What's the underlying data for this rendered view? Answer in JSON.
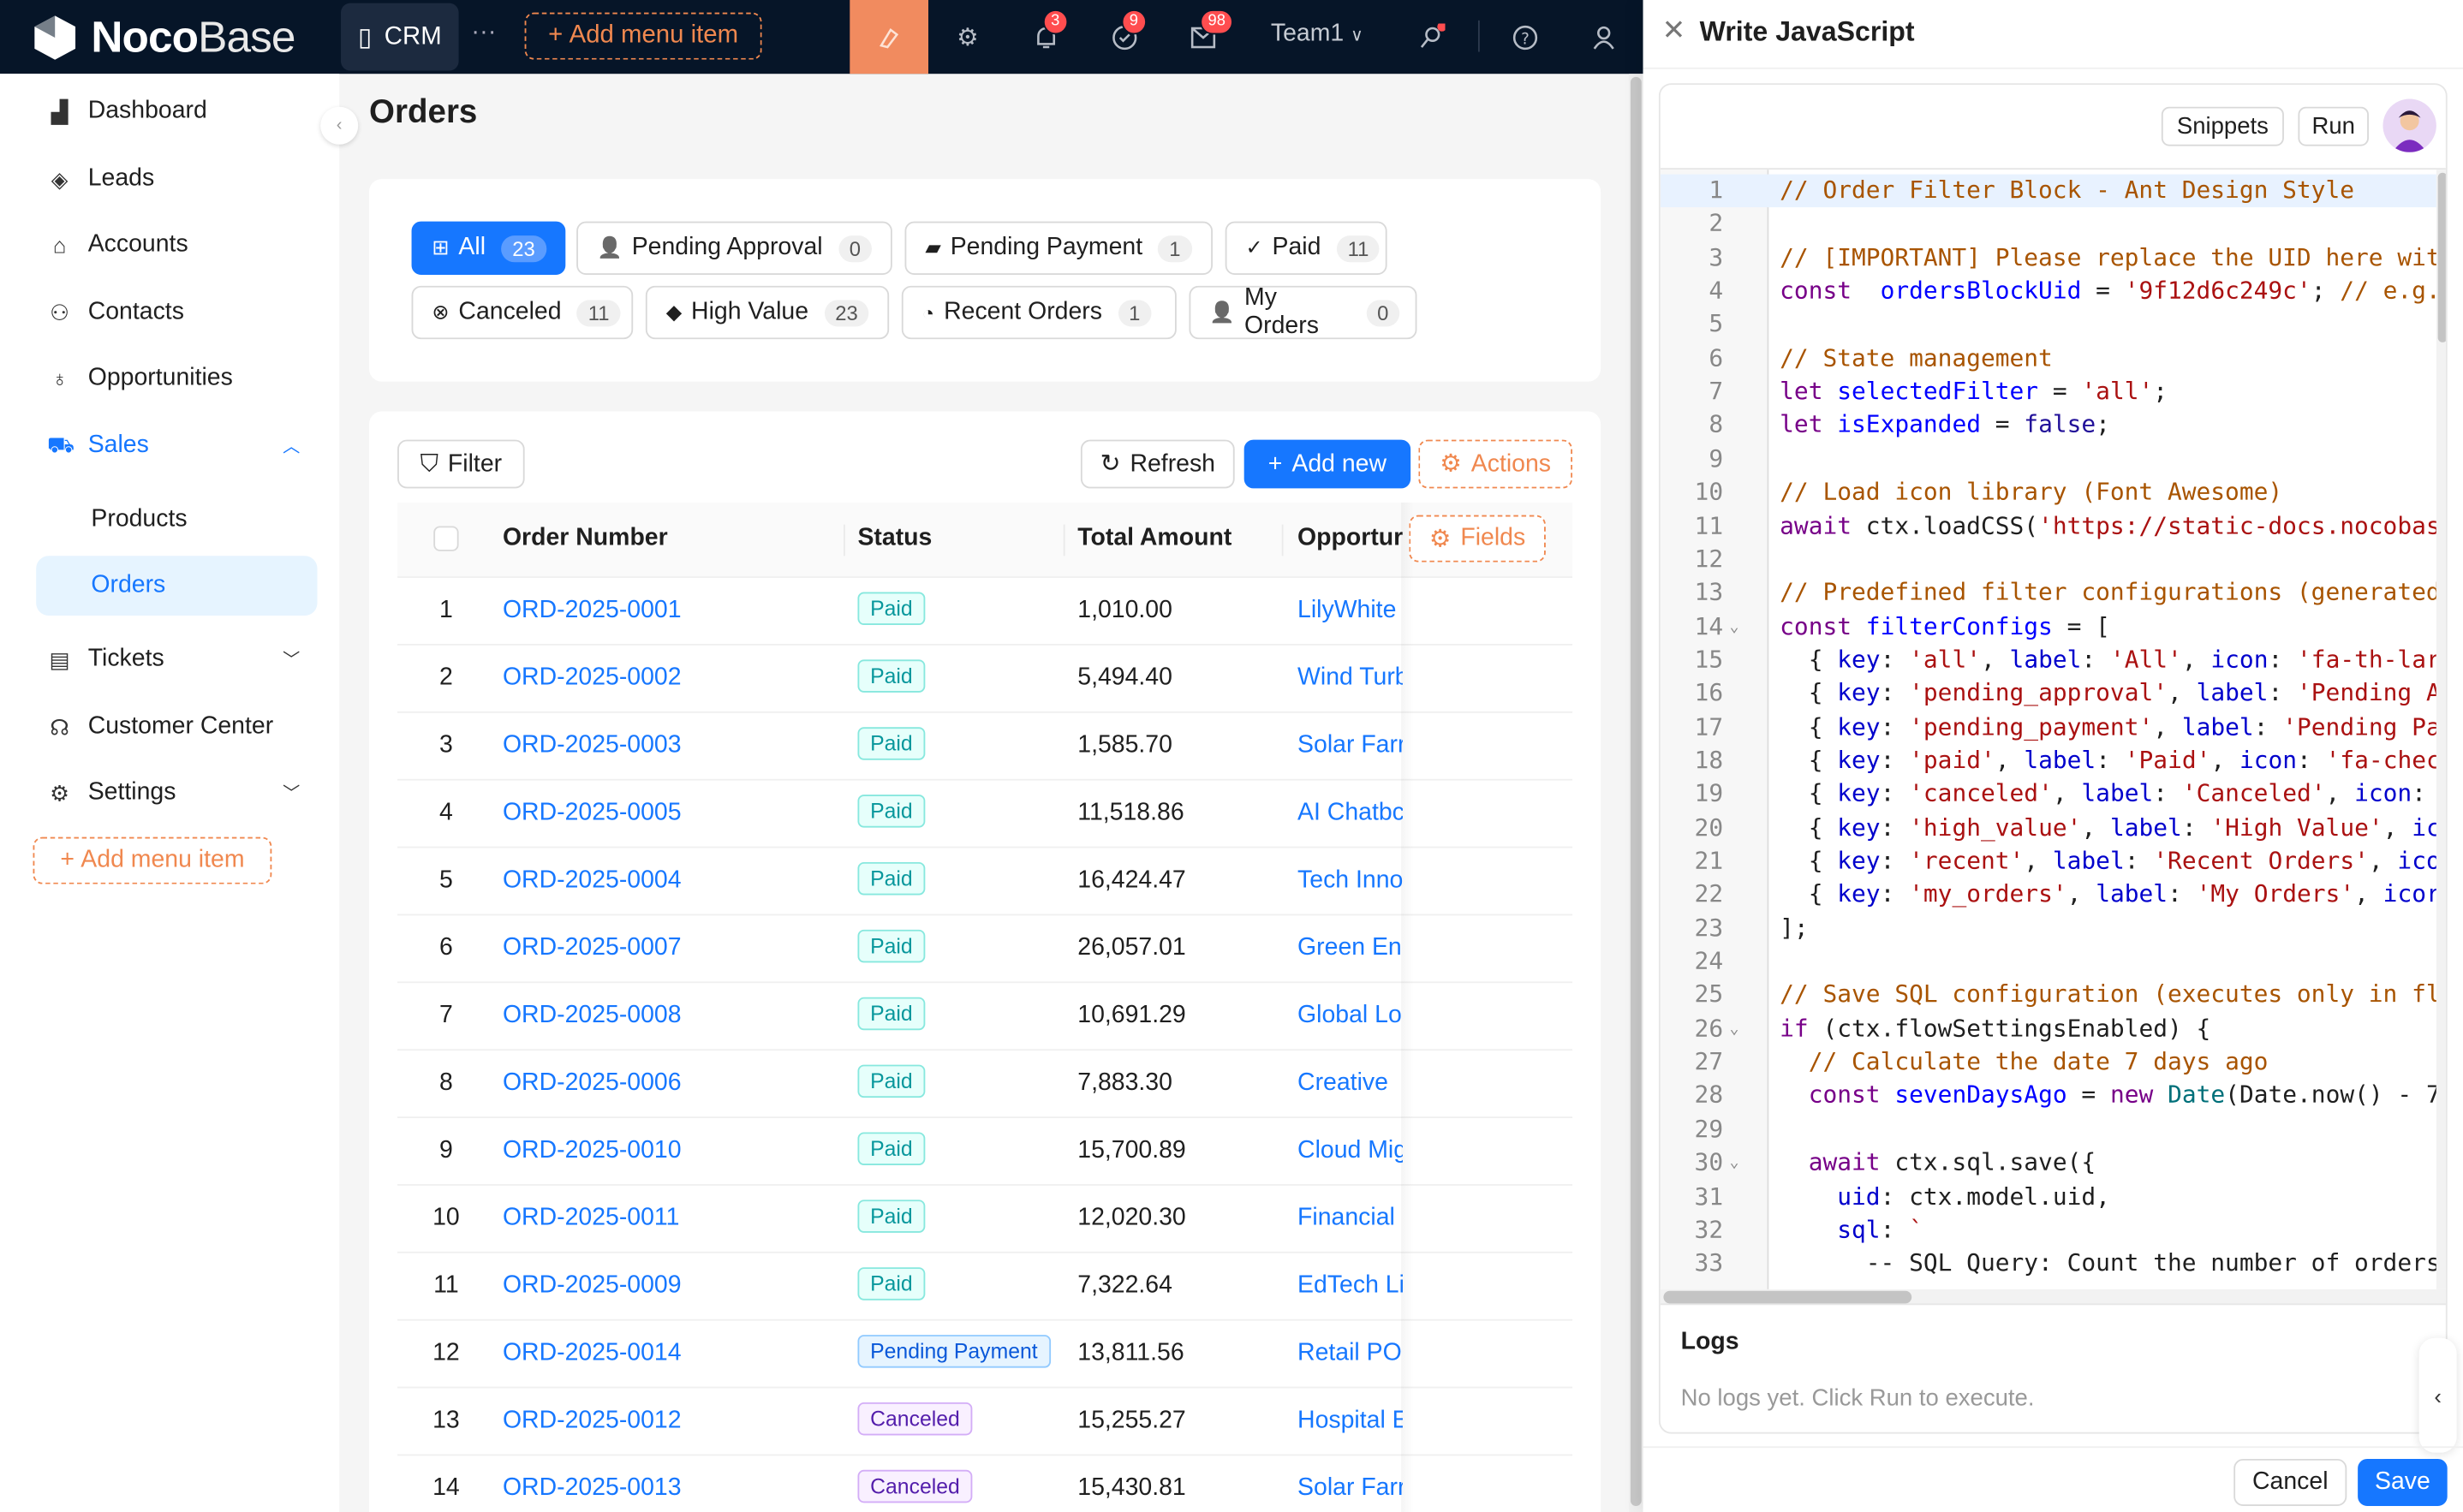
{
  "topbar": {
    "logo_bold": "Noco",
    "logo_light": "Base",
    "crm_tab": "CRM",
    "more": "···",
    "add_menu_item": "Add menu item",
    "notifications": {
      "bell": "3",
      "tasks": "9",
      "mail": "98"
    },
    "team": "Team1",
    "accent": "#f18b5f",
    "icons": [
      "ui-editor-icon",
      "gear-icon",
      "bell-icon",
      "check-circle-icon",
      "mail-icon",
      "key-search-icon",
      "help-icon",
      "user-icon"
    ]
  },
  "sidebar": {
    "items": [
      {
        "label": "Dashboard",
        "icon": "chart-icon"
      },
      {
        "label": "Leads",
        "icon": "target-icon"
      },
      {
        "label": "Accounts",
        "icon": "bank-icon"
      },
      {
        "label": "Contacts",
        "icon": "contacts-icon"
      },
      {
        "label": "Opportunities",
        "icon": "bulb-icon"
      },
      {
        "label": "Sales",
        "icon": "cart-icon"
      },
      {
        "label": "Products"
      },
      {
        "label": "Orders"
      },
      {
        "label": "Tickets",
        "icon": "ticket-icon"
      },
      {
        "label": "Customer Center",
        "icon": "headset-icon"
      },
      {
        "label": "Settings",
        "icon": "gear-icon"
      }
    ],
    "add_menu_item": "Add menu item",
    "selected": "Orders"
  },
  "page": {
    "title": "Orders"
  },
  "filters": [
    {
      "label": "All",
      "count": "23",
      "active": true
    },
    {
      "label": "Pending Approval",
      "count": "0"
    },
    {
      "label": "Pending Payment",
      "count": "1"
    },
    {
      "label": "Paid",
      "count": "11"
    },
    {
      "label": "Canceled",
      "count": "11"
    },
    {
      "label": "High Value",
      "count": "23"
    },
    {
      "label": "Recent Orders",
      "count": "1"
    },
    {
      "label": "My Orders",
      "count": "0"
    }
  ],
  "toolbar": {
    "filter": "Filter",
    "refresh": "Refresh",
    "add_new": "Add new",
    "actions": "Actions",
    "fields": "Fields"
  },
  "table": {
    "columns": [
      "Order Number",
      "Status",
      "Total Amount",
      "Opportur"
    ],
    "rows": [
      [
        "1",
        "ORD-2025-0001",
        "Paid",
        "1,010.00",
        "LilyWhite"
      ],
      [
        "2",
        "ORD-2025-0002",
        "Paid",
        "5,494.40",
        "Wind Turb"
      ],
      [
        "3",
        "ORD-2025-0003",
        "Paid",
        "1,585.70",
        "Solar Farr"
      ],
      [
        "4",
        "ORD-2025-0005",
        "Paid",
        "11,518.86",
        "AI Chatbc"
      ],
      [
        "5",
        "ORD-2025-0004",
        "Paid",
        "16,424.47",
        "Tech Inno"
      ],
      [
        "6",
        "ORD-2025-0007",
        "Paid",
        "26,057.01",
        "Green Ene"
      ],
      [
        "7",
        "ORD-2025-0008",
        "Paid",
        "10,691.29",
        "Global Lo"
      ],
      [
        "8",
        "ORD-2025-0006",
        "Paid",
        "7,883.30",
        "Creative"
      ],
      [
        "9",
        "ORD-2025-0010",
        "Paid",
        "15,700.89",
        "Cloud Mig"
      ],
      [
        "10",
        "ORD-2025-0011",
        "Paid",
        "12,020.30",
        "Financial"
      ],
      [
        "11",
        "ORD-2025-0009",
        "Paid",
        "7,322.64",
        "EdTech Li"
      ],
      [
        "12",
        "ORD-2025-0014",
        "Pending Payment",
        "13,811.56",
        "Retail POS"
      ],
      [
        "13",
        "ORD-2025-0012",
        "Canceled",
        "15,255.27",
        "Hospital E"
      ],
      [
        "14",
        "ORD-2025-0013",
        "Canceled",
        "15,430.81",
        "Solar Farr"
      ]
    ],
    "status_colors": {
      "Paid": {
        "bg": "#e6fffb",
        "border": "#87e8de",
        "text": "#08979c"
      },
      "Pending Payment": {
        "bg": "#e6f4ff",
        "border": "#91caff",
        "text": "#0958d9"
      },
      "Canceled": {
        "bg": "#f9f0ff",
        "border": "#d3adf7",
        "text": "#531dab"
      }
    }
  },
  "drawer": {
    "title": "Write JavaScript",
    "snippets": "Snippets",
    "run": "Run",
    "logs_title": "Logs",
    "logs_empty": "No logs yet. Click Run to execute.",
    "cancel": "Cancel",
    "save": "Save",
    "active_line": 1,
    "folds": [
      14,
      26,
      30
    ],
    "code": [
      [
        [
          "c",
          "// Order Filter Block - Ant Design Style"
        ]
      ],
      [],
      [
        [
          "c",
          "// [IMPORTANT] Please replace the UID here wit"
        ]
      ],
      [
        [
          "k",
          "const"
        ],
        [
          "",
          "  "
        ],
        [
          "d",
          "ordersBlockUid"
        ],
        [
          "",
          " = "
        ],
        [
          "s",
          "'9f12d6c249c'"
        ],
        [
          "",
          "; "
        ],
        [
          "c",
          "// e.g.,"
        ]
      ],
      [],
      [
        [
          "c",
          "// State management"
        ]
      ],
      [
        [
          "k",
          "let"
        ],
        [
          "",
          " "
        ],
        [
          "d",
          "selectedFilter"
        ],
        [
          "",
          " = "
        ],
        [
          "s",
          "'all'"
        ],
        [
          "",
          ";"
        ]
      ],
      [
        [
          "k",
          "let"
        ],
        [
          "",
          " "
        ],
        [
          "d",
          "isExpanded"
        ],
        [
          "",
          " = "
        ],
        [
          "a",
          "false"
        ],
        [
          "",
          ";"
        ]
      ],
      [],
      [
        [
          "c",
          "// Load icon library (Font Awesome)"
        ]
      ],
      [
        [
          "k",
          "await"
        ],
        [
          "",
          " ctx.loadCSS("
        ],
        [
          "s",
          "'https://static-docs.nocobas"
        ]
      ],
      [],
      [
        [
          "c",
          "// Predefined filter configurations (generated"
        ]
      ],
      [
        [
          "k",
          "const"
        ],
        [
          "",
          " "
        ],
        [
          "d",
          "filterConfigs"
        ],
        [
          "",
          " = ["
        ]
      ],
      [
        [
          "",
          "  { "
        ],
        [
          "p",
          "key"
        ],
        [
          "",
          ": "
        ],
        [
          "s",
          "'all'"
        ],
        [
          "",
          ", "
        ],
        [
          "p",
          "label"
        ],
        [
          "",
          ": "
        ],
        [
          "s",
          "'All'"
        ],
        [
          "",
          ", "
        ],
        [
          "p",
          "icon"
        ],
        [
          "",
          ": "
        ],
        [
          "s",
          "'fa-th-lar"
        ]
      ],
      [
        [
          "",
          "  { "
        ],
        [
          "p",
          "key"
        ],
        [
          "",
          ": "
        ],
        [
          "s",
          "'pending_approval'"
        ],
        [
          "",
          ", "
        ],
        [
          "p",
          "label"
        ],
        [
          "",
          ": "
        ],
        [
          "s",
          "'Pending A"
        ]
      ],
      [
        [
          "",
          "  { "
        ],
        [
          "p",
          "key"
        ],
        [
          "",
          ": "
        ],
        [
          "s",
          "'pending_payment'"
        ],
        [
          "",
          ", "
        ],
        [
          "p",
          "label"
        ],
        [
          "",
          ": "
        ],
        [
          "s",
          "'Pending Pa"
        ]
      ],
      [
        [
          "",
          "  { "
        ],
        [
          "p",
          "key"
        ],
        [
          "",
          ": "
        ],
        [
          "s",
          "'paid'"
        ],
        [
          "",
          ", "
        ],
        [
          "p",
          "label"
        ],
        [
          "",
          ": "
        ],
        [
          "s",
          "'Paid'"
        ],
        [
          "",
          ", "
        ],
        [
          "p",
          "icon"
        ],
        [
          "",
          ": "
        ],
        [
          "s",
          "'fa-chec"
        ]
      ],
      [
        [
          "",
          "  { "
        ],
        [
          "p",
          "key"
        ],
        [
          "",
          ": "
        ],
        [
          "s",
          "'canceled'"
        ],
        [
          "",
          ", "
        ],
        [
          "p",
          "label"
        ],
        [
          "",
          ": "
        ],
        [
          "s",
          "'Canceled'"
        ],
        [
          "",
          ", "
        ],
        [
          "p",
          "icon"
        ],
        [
          "",
          ":"
        ]
      ],
      [
        [
          "",
          "  { "
        ],
        [
          "p",
          "key"
        ],
        [
          "",
          ": "
        ],
        [
          "s",
          "'high_value'"
        ],
        [
          "",
          ", "
        ],
        [
          "p",
          "label"
        ],
        [
          "",
          ": "
        ],
        [
          "s",
          "'High Value'"
        ],
        [
          "",
          ", "
        ],
        [
          "p",
          "ic"
        ]
      ],
      [
        [
          "",
          "  { "
        ],
        [
          "p",
          "key"
        ],
        [
          "",
          ": "
        ],
        [
          "s",
          "'recent'"
        ],
        [
          "",
          ", "
        ],
        [
          "p",
          "label"
        ],
        [
          "",
          ": "
        ],
        [
          "s",
          "'Recent Orders'"
        ],
        [
          "",
          ", "
        ],
        [
          "p",
          "ico"
        ]
      ],
      [
        [
          "",
          "  { "
        ],
        [
          "p",
          "key"
        ],
        [
          "",
          ": "
        ],
        [
          "s",
          "'my_orders'"
        ],
        [
          "",
          ", "
        ],
        [
          "p",
          "label"
        ],
        [
          "",
          ": "
        ],
        [
          "s",
          "'My Orders'"
        ],
        [
          "",
          ", "
        ],
        [
          "p",
          "icor"
        ]
      ],
      [
        [
          "",
          "];"
        ]
      ],
      [],
      [
        [
          "c",
          "// Save SQL configuration (executes only in fl"
        ]
      ],
      [
        [
          "k",
          "if"
        ],
        [
          "",
          " (ctx.flowSettingsEnabled) {"
        ]
      ],
      [
        [
          "",
          "  "
        ],
        [
          "c",
          "// Calculate the date 7 days ago"
        ]
      ],
      [
        [
          "",
          "  "
        ],
        [
          "k",
          "const"
        ],
        [
          "",
          " "
        ],
        [
          "d",
          "sevenDaysAgo"
        ],
        [
          "",
          " = "
        ],
        [
          "k",
          "new"
        ],
        [
          "",
          " "
        ],
        [
          "v",
          "Date"
        ],
        [
          "",
          "(Date.now() - 7"
        ]
      ],
      [],
      [
        [
          "",
          "  "
        ],
        [
          "k",
          "await"
        ],
        [
          "",
          " ctx.sql.save({"
        ]
      ],
      [
        [
          "",
          "    "
        ],
        [
          "p",
          "uid"
        ],
        [
          "",
          ": ctx.model.uid,"
        ]
      ],
      [
        [
          "",
          "    "
        ],
        [
          "p",
          "sql"
        ],
        [
          "",
          ": "
        ],
        [
          "s",
          "`"
        ]
      ],
      [
        [
          "",
          "      -- SQL Query: Count the number of orders"
        ]
      ]
    ]
  }
}
